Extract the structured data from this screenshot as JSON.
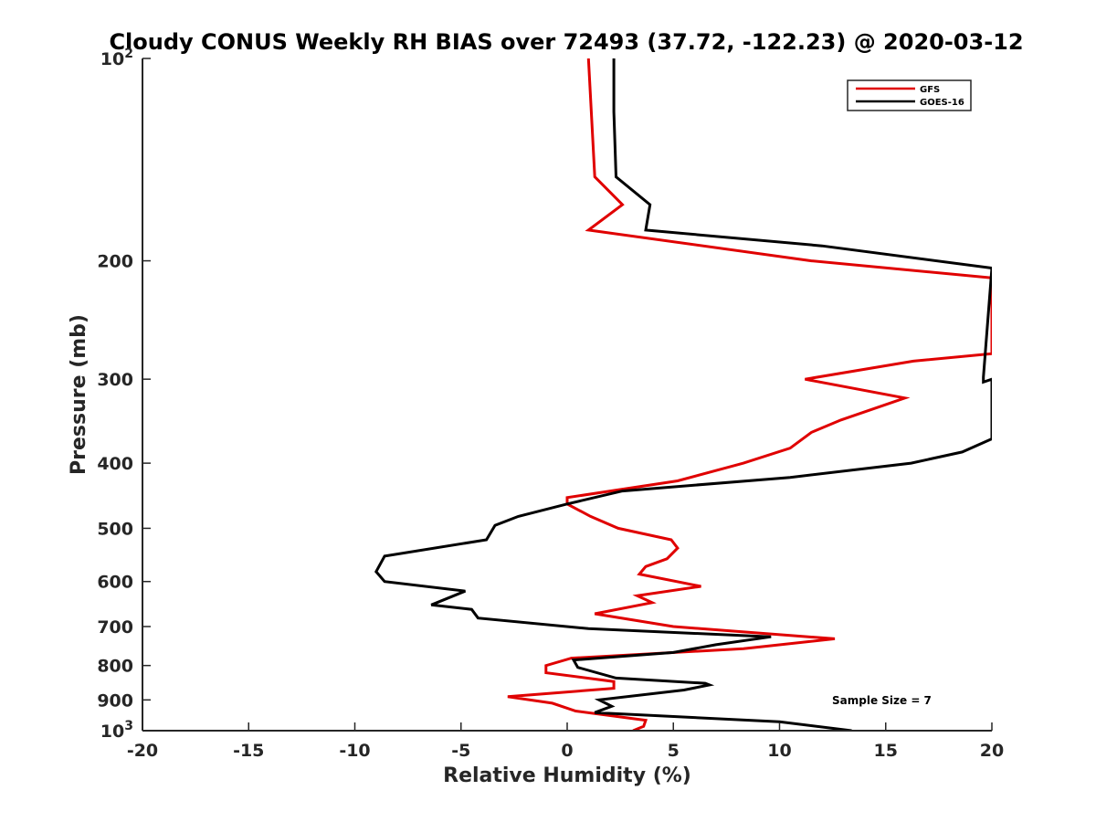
{
  "chart_data": {
    "type": "line",
    "title": "Cloudy CONUS Weekly RH BIAS over 72493 (37.72, -122.23) @ 2020-03-12",
    "xlabel": "Relative Humidity (%)",
    "ylabel": "Pressure (mb)",
    "xlim": [
      -20,
      20
    ],
    "ylim": [
      1000,
      100
    ],
    "y_scale": "log",
    "y_reversed": true,
    "grid": false,
    "legend_position": "top-right",
    "x_ticks": [
      "-20",
      "-15",
      "-10",
      "-5",
      "0",
      "5",
      "10",
      "15",
      "20"
    ],
    "y_ticks": [
      {
        "value": 100,
        "base": "10",
        "exp": "2"
      },
      {
        "value": 200,
        "label": "200"
      },
      {
        "value": 300,
        "label": "300"
      },
      {
        "value": 400,
        "label": "400"
      },
      {
        "value": 500,
        "label": "500"
      },
      {
        "value": 600,
        "label": "600"
      },
      {
        "value": 700,
        "label": "700"
      },
      {
        "value": 800,
        "label": "800"
      },
      {
        "value": 900,
        "label": "900"
      },
      {
        "value": 1000,
        "base": "10",
        "exp": "3"
      }
    ],
    "series": [
      {
        "name": "GFS",
        "color": "#e00000",
        "points": [
          [
            1.0,
            100
          ],
          [
            1.3,
            150
          ],
          [
            2.6,
            165
          ],
          [
            1.0,
            180
          ],
          [
            11.5,
            200
          ],
          [
            20.0,
            212
          ],
          [
            20.0,
            212
          ],
          [
            20.0,
            275
          ],
          [
            16.3,
            282
          ],
          [
            11.2,
            300
          ],
          [
            15.9,
            320
          ],
          [
            12.9,
            345
          ],
          [
            11.5,
            360
          ],
          [
            10.5,
            380
          ],
          [
            8.3,
            400
          ],
          [
            5.2,
            425
          ],
          [
            0.0,
            450
          ],
          [
            0.0,
            460
          ],
          [
            1.1,
            480
          ],
          [
            2.4,
            500
          ],
          [
            4.9,
            520
          ],
          [
            5.2,
            535
          ],
          [
            4.7,
            555
          ],
          [
            3.7,
            570
          ],
          [
            3.4,
            585
          ],
          [
            6.3,
            610
          ],
          [
            3.3,
            630
          ],
          [
            4.0,
            645
          ],
          [
            1.3,
            670
          ],
          [
            5.0,
            700
          ],
          [
            12.6,
            730
          ],
          [
            8.3,
            755
          ],
          [
            0.2,
            780
          ],
          [
            -1.0,
            800
          ],
          [
            -1.0,
            820
          ],
          [
            2.2,
            845
          ],
          [
            2.2,
            865
          ],
          [
            -2.8,
            890
          ],
          [
            -0.7,
            910
          ],
          [
            0.4,
            935
          ],
          [
            3.7,
            965
          ],
          [
            3.6,
            985
          ],
          [
            3.1,
            1000
          ]
        ]
      },
      {
        "name": "GOES-16",
        "color": "#000000",
        "points": [
          [
            2.2,
            100
          ],
          [
            2.2,
            120
          ],
          [
            2.3,
            150
          ],
          [
            3.9,
            165
          ],
          [
            3.7,
            180
          ],
          [
            12.0,
            190
          ],
          [
            20.0,
            205
          ],
          [
            20.0,
            205
          ],
          [
            19.6,
            298
          ],
          [
            19.6,
            303
          ],
          [
            20.0,
            300
          ],
          [
            20.0,
            368
          ],
          [
            18.6,
            385
          ],
          [
            16.2,
            400
          ],
          [
            10.5,
            420
          ],
          [
            2.6,
            440
          ],
          [
            0.0,
            460
          ],
          [
            -2.3,
            480
          ],
          [
            -3.4,
            495
          ],
          [
            -3.8,
            520
          ],
          [
            -8.6,
            550
          ],
          [
            -9.0,
            580
          ],
          [
            -8.6,
            600
          ],
          [
            -4.8,
            620
          ],
          [
            -6.4,
            650
          ],
          [
            -4.5,
            660
          ],
          [
            -4.2,
            680
          ],
          [
            1.0,
            705
          ],
          [
            9.6,
            725
          ],
          [
            7.0,
            745
          ],
          [
            5.0,
            765
          ],
          [
            0.3,
            785
          ],
          [
            0.5,
            805
          ],
          [
            2.3,
            835
          ],
          [
            6.5,
            850
          ],
          [
            6.7,
            855
          ],
          [
            5.5,
            870
          ],
          [
            1.5,
            900
          ],
          [
            2.1,
            920
          ],
          [
            1.3,
            940
          ],
          [
            10.0,
            970
          ],
          [
            13.4,
            1000
          ]
        ]
      }
    ],
    "annotation": "Sample Size = 7"
  }
}
